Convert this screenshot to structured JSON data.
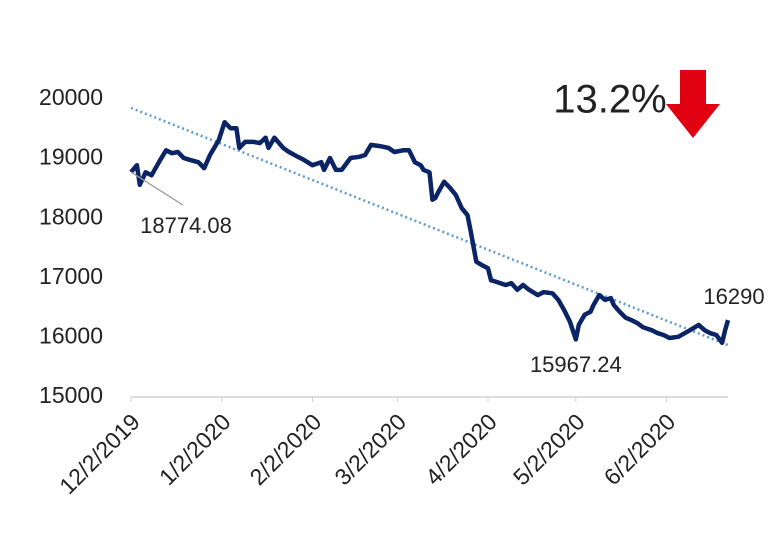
{
  "chart_data": {
    "type": "line",
    "x": [
      "12/2/2019",
      "12/4/2019",
      "12/5/2019",
      "12/7/2019",
      "12/9/2019",
      "12/12/2019",
      "12/14/2019",
      "12/16/2019",
      "12/18/2019",
      "12/20/2019",
      "12/22/2019",
      "12/25/2019",
      "12/27/2019",
      "12/29/2019",
      "1/1/2020",
      "1/3/2020",
      "1/5/2020",
      "1/7/2020",
      "1/8/2020",
      "1/10/2020",
      "1/13/2020",
      "1/15/2020",
      "1/17/2020",
      "1/18/2020",
      "1/20/2020",
      "1/23/2020",
      "1/25/2020",
      "1/28/2020",
      "1/30/2020",
      "2/2/2020",
      "2/5/2020",
      "2/6/2020",
      "2/8/2020",
      "2/10/2020",
      "2/12/2020",
      "2/15/2020",
      "2/18/2020",
      "2/20/2020",
      "2/22/2020",
      "2/25/2020",
      "2/28/2020",
      "3/1/2020",
      "3/4/2020",
      "3/6/2020",
      "3/8/2020",
      "3/10/2020",
      "3/11/2020",
      "3/13/2020",
      "3/14/2020",
      "3/15/2020",
      "3/16/2020",
      "3/18/2020",
      "3/20/2020",
      "3/22/2020",
      "3/24/2020",
      "3/26/2020",
      "3/27/2020",
      "3/29/2020",
      "3/31/2020",
      "4/2/2020",
      "4/3/2020",
      "4/5/2020",
      "4/8/2020",
      "4/10/2020",
      "4/12/2020",
      "4/14/2020",
      "4/16/2020",
      "4/19/2020",
      "4/21/2020",
      "4/24/2020",
      "4/26/2020",
      "4/28/2020",
      "4/30/2020",
      "5/2/2020",
      "5/3/2020",
      "5/5/2020",
      "5/7/2020",
      "5/8/2020",
      "5/10/2020",
      "5/12/2020",
      "5/14/2020",
      "5/15/2020",
      "5/17/2020",
      "5/19/2020",
      "5/21/2020",
      "5/23/2020",
      "5/25/2020",
      "5/28/2020",
      "5/30/2020",
      "6/1/2020",
      "6/3/2020",
      "6/6/2020",
      "6/10/2020",
      "6/13/2020",
      "6/15/2020",
      "6/17/2020",
      "6/19/2020",
      "6/21/2020",
      "6/22/2020",
      "6/23/2020"
    ],
    "series": [
      {
        "color": "#0b2466",
        "values": [
          18774.08,
          18890,
          18560,
          18770,
          18720,
          18980,
          19140,
          19090,
          19110,
          19010,
          18980,
          18940,
          18840,
          19060,
          19310,
          19610,
          19510,
          19510,
          19180,
          19280,
          19280,
          19260,
          19350,
          19180,
          19350,
          19180,
          19110,
          19030,
          18980,
          18890,
          18940,
          18810,
          19010,
          18810,
          18810,
          19010,
          19030,
          19060,
          19230,
          19210,
          19180,
          19110,
          19140,
          19140,
          18940,
          18890,
          18810,
          18770,
          18310,
          18340,
          18440,
          18610,
          18510,
          18390,
          18170,
          18050,
          17800,
          17270,
          17210,
          17160,
          16960,
          16930,
          16880,
          16910,
          16800,
          16880,
          16800,
          16710,
          16760,
          16740,
          16630,
          16460,
          16260,
          15967.24,
          16210,
          16380,
          16430,
          16540,
          16710,
          16630,
          16660,
          16540,
          16430,
          16330,
          16290,
          16240,
          16170,
          16120,
          16070,
          16040,
          15990,
          16010,
          16120,
          16210,
          16120,
          16070,
          16040,
          15910,
          16120,
          16290
        ]
      }
    ],
    "trendline": {
      "x": [
        "12/2/2019",
        "6/23/2020"
      ],
      "values": [
        19850,
        15870
      ],
      "color": "#5b9bd5"
    },
    "xlim": [
      "12/2/2019",
      "6/23/2020"
    ],
    "xticks": [
      "12/2/2019",
      "1/2/2020",
      "2/2/2020",
      "3/2/2020",
      "4/2/2020",
      "5/2/2020",
      "6/2/2020"
    ],
    "ylim": [
      15000,
      20000
    ],
    "yticks": [
      15000,
      16000,
      17000,
      18000,
      19000,
      20000
    ],
    "annotations": [
      {
        "text": "18774.08",
        "x": "12/2/2019",
        "value": 18774.08
      },
      {
        "text": "15967.24",
        "x": "5/2/2020",
        "value": 15967.24
      },
      {
        "text": "16290",
        "x": "6/23/2020",
        "value": 16290
      },
      {
        "text": "13.2%",
        "arrow": "down",
        "color": "#e00012"
      }
    ]
  }
}
